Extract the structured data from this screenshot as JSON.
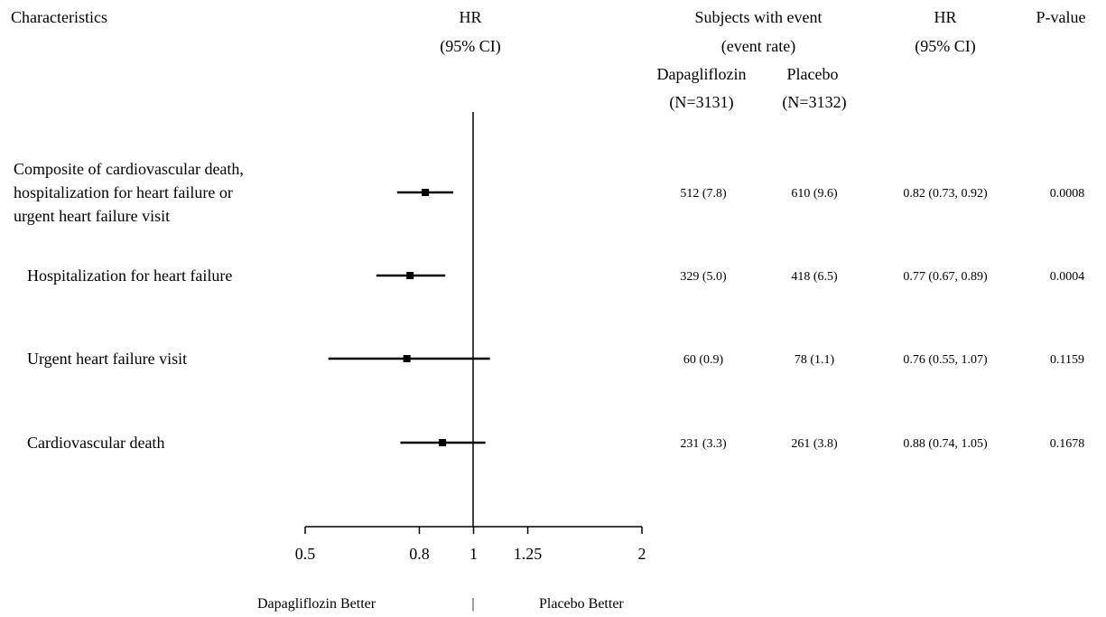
{
  "headers": {
    "characteristics": "Characteristics",
    "hr_plot_line1": "HR",
    "hr_plot_line2": "(95% CI)",
    "subjects_line1": "Subjects with event",
    "subjects_line2": "(event rate)",
    "dapa_name": "Dapagliflozin",
    "dapa_n": "(N=3131)",
    "placebo_name": "Placebo",
    "placebo_n": "(N=3132)",
    "hr_col_line1": "HR",
    "hr_col_line2": "(95% CI)",
    "pvalue": "P-value"
  },
  "footer": {
    "left": "Dapagliflozin Better",
    "divider": "|",
    "right": "Placebo Better"
  },
  "chart_data": {
    "type": "forest",
    "x_scale": "log",
    "xlim": [
      0.5,
      2
    ],
    "reference_line": 1,
    "ticks": [
      0.5,
      0.8,
      1,
      1.25,
      2
    ],
    "tick_labels": [
      "0.5",
      "0.8",
      "1",
      "1.25",
      "2"
    ],
    "rows": [
      {
        "label_lines": [
          "Composite of cardiovascular death,",
          "hospitalization for heart failure or",
          "urgent heart failure visit"
        ],
        "dapa": "512 (7.8)",
        "placebo": "610 (9.6)",
        "hr_text": "0.82 (0.73, 0.92)",
        "p": "0.0008",
        "hr": 0.82,
        "lo": 0.73,
        "hi": 0.92
      },
      {
        "label_lines": [
          "Hospitalization for heart failure"
        ],
        "dapa": "329 (5.0)",
        "placebo": "418 (6.5)",
        "hr_text": "0.77 (0.67, 0.89)",
        "p": "0.0004",
        "hr": 0.77,
        "lo": 0.67,
        "hi": 0.89
      },
      {
        "label_lines": [
          "Urgent heart failure visit"
        ],
        "dapa": "60 (0.9)",
        "placebo": "78 (1.1)",
        "hr_text": "0.76 (0.55, 1.07)",
        "p": "0.1159",
        "hr": 0.76,
        "lo": 0.55,
        "hi": 1.07
      },
      {
        "label_lines": [
          "Cardiovascular death"
        ],
        "dapa": "231 (3.3)",
        "placebo": "261 (3.8)",
        "hr_text": "0.88 (0.74, 1.05)",
        "p": "0.1678",
        "hr": 0.88,
        "lo": 0.74,
        "hi": 1.05
      }
    ]
  }
}
